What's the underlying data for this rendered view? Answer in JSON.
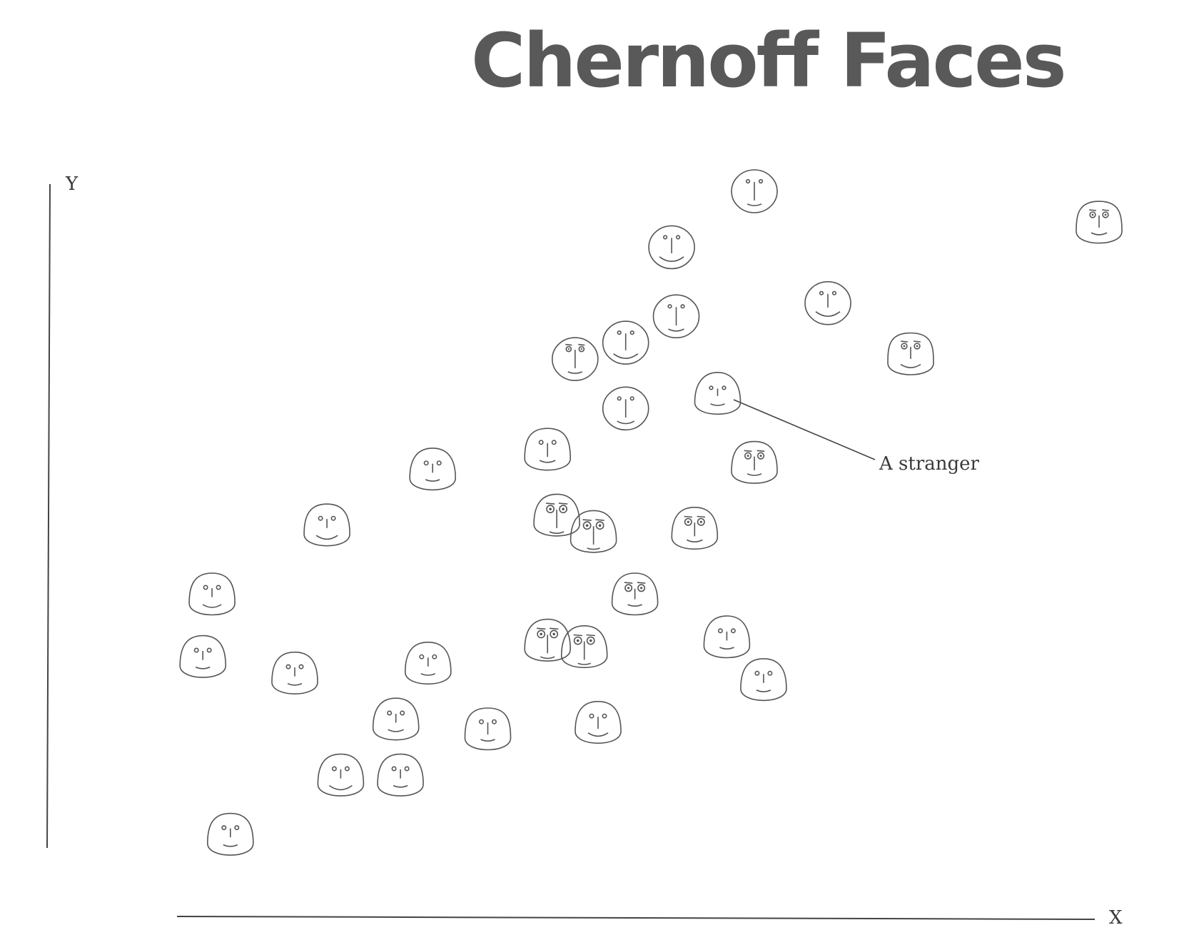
{
  "title": "Chernoff Faces",
  "chart_data": {
    "type": "scatter",
    "title": "Chernoff Faces",
    "xlabel": "X",
    "ylabel": "Y",
    "xlim": [
      0,
      100
    ],
    "ylim": [
      0,
      100
    ],
    "grid": false,
    "annotations": [
      {
        "text": "A stranger",
        "target_index": 12
      }
    ],
    "points": [
      {
        "x": 62.5,
        "y": 100.0,
        "face": {
          "head": 0.0,
          "eyes": 0.2,
          "nose": 0.9,
          "mouth": 0.2
        }
      },
      {
        "x": 100.0,
        "y": 95.0,
        "face": {
          "head": 0.2,
          "eyes": 0.6,
          "nose": 0.5,
          "mouth": 0.3
        }
      },
      {
        "x": 53.5,
        "y": 91.5,
        "face": {
          "head": 0.0,
          "eyes": 0.2,
          "nose": 0.7,
          "mouth": 0.9
        }
      },
      {
        "x": 70.5,
        "y": 83.0,
        "face": {
          "head": 0.0,
          "eyes": 0.2,
          "nose": 0.6,
          "mouth": 0.9
        }
      },
      {
        "x": 54.0,
        "y": 81.0,
        "face": {
          "head": 0.0,
          "eyes": 0.2,
          "nose": 0.9,
          "mouth": 0.3
        }
      },
      {
        "x": 48.5,
        "y": 77.0,
        "face": {
          "head": 0.0,
          "eyes": 0.2,
          "nose": 0.8,
          "mouth": 0.9
        }
      },
      {
        "x": 43.0,
        "y": 74.5,
        "face": {
          "head": 0.0,
          "eyes": 0.5,
          "nose": 0.9,
          "mouth": 0.2
        }
      },
      {
        "x": 79.5,
        "y": 75.0,
        "face": {
          "head": 0.1,
          "eyes": 0.6,
          "nose": 0.5,
          "mouth": 0.6
        }
      },
      {
        "x": 48.5,
        "y": 67.0,
        "face": {
          "head": 0.0,
          "eyes": 0.2,
          "nose": 0.9,
          "mouth": 0.4
        }
      },
      {
        "x": 40.0,
        "y": 60.5,
        "face": {
          "head": 0.4,
          "eyes": 0.3,
          "nose": 0.6,
          "mouth": 0.3
        }
      },
      {
        "x": 27.5,
        "y": 57.5,
        "face": {
          "head": 0.7,
          "eyes": 0.3,
          "nose": 0.3,
          "mouth": 0.2
        }
      },
      {
        "x": 62.5,
        "y": 58.5,
        "face": {
          "head": 0.5,
          "eyes": 0.7,
          "nose": 0.6,
          "mouth": 0.2
        }
      },
      {
        "x": 58.5,
        "y": 69.0,
        "face": {
          "head": 0.9,
          "eyes": 0.2,
          "nose": 0.2,
          "mouth": 0.2
        }
      },
      {
        "x": 16.0,
        "y": 49.0,
        "face": {
          "head": 0.5,
          "eyes": 0.3,
          "nose": 0.3,
          "mouth": 0.7
        }
      },
      {
        "x": 41.0,
        "y": 50.5,
        "face": {
          "head": 0.7,
          "eyes": 0.9,
          "nose": 0.9,
          "mouth": 0.2
        }
      },
      {
        "x": 45.0,
        "y": 48.0,
        "face": {
          "head": 0.7,
          "eyes": 0.9,
          "nose": 0.9,
          "mouth": 0.1
        }
      },
      {
        "x": 56.0,
        "y": 48.5,
        "face": {
          "head": 0.6,
          "eyes": 0.8,
          "nose": 0.6,
          "mouth": 0.3
        }
      },
      {
        "x": 49.5,
        "y": 38.5,
        "face": {
          "head": 0.7,
          "eyes": 0.8,
          "nose": 0.4,
          "mouth": 0.2
        }
      },
      {
        "x": 3.5,
        "y": 38.5,
        "face": {
          "head": 0.5,
          "eyes": 0.3,
          "nose": 0.3,
          "mouth": 0.5
        }
      },
      {
        "x": 2.5,
        "y": 29.0,
        "face": {
          "head": 0.6,
          "eyes": 0.3,
          "nose": 0.3,
          "mouth": 0.2
        }
      },
      {
        "x": 12.5,
        "y": 26.5,
        "face": {
          "head": 0.6,
          "eyes": 0.3,
          "nose": 0.3,
          "mouth": 0.2
        }
      },
      {
        "x": 27.0,
        "y": 28.0,
        "face": {
          "head": 0.6,
          "eyes": 0.3,
          "nose": 0.3,
          "mouth": 0.2
        }
      },
      {
        "x": 40.0,
        "y": 31.5,
        "face": {
          "head": 0.7,
          "eyes": 0.9,
          "nose": 0.9,
          "mouth": 0.2
        }
      },
      {
        "x": 44.0,
        "y": 30.5,
        "face": {
          "head": 0.7,
          "eyes": 0.9,
          "nose": 0.9,
          "mouth": 0.1
        }
      },
      {
        "x": 59.5,
        "y": 32.0,
        "face": {
          "head": 0.7,
          "eyes": 0.3,
          "nose": 0.3,
          "mouth": 0.2
        }
      },
      {
        "x": 63.5,
        "y": 25.5,
        "face": {
          "head": 0.6,
          "eyes": 0.3,
          "nose": 0.3,
          "mouth": 0.2
        }
      },
      {
        "x": 23.5,
        "y": 19.5,
        "face": {
          "head": 0.7,
          "eyes": 0.3,
          "nose": 0.3,
          "mouth": 0.3
        }
      },
      {
        "x": 33.5,
        "y": 18.0,
        "face": {
          "head": 0.3,
          "eyes": 0.3,
          "nose": 0.5,
          "mouth": 0.2
        }
      },
      {
        "x": 45.5,
        "y": 19.0,
        "face": {
          "head": 0.6,
          "eyes": 0.3,
          "nose": 0.5,
          "mouth": 0.6
        }
      },
      {
        "x": 17.5,
        "y": 11.0,
        "face": {
          "head": 0.6,
          "eyes": 0.3,
          "nose": 0.3,
          "mouth": 0.8
        }
      },
      {
        "x": 24.0,
        "y": 11.0,
        "face": {
          "head": 0.6,
          "eyes": 0.3,
          "nose": 0.3,
          "mouth": 0.2
        }
      },
      {
        "x": 5.5,
        "y": 2.0,
        "face": {
          "head": 0.5,
          "eyes": 0.3,
          "nose": 0.3,
          "mouth": 0.2
        }
      }
    ]
  }
}
